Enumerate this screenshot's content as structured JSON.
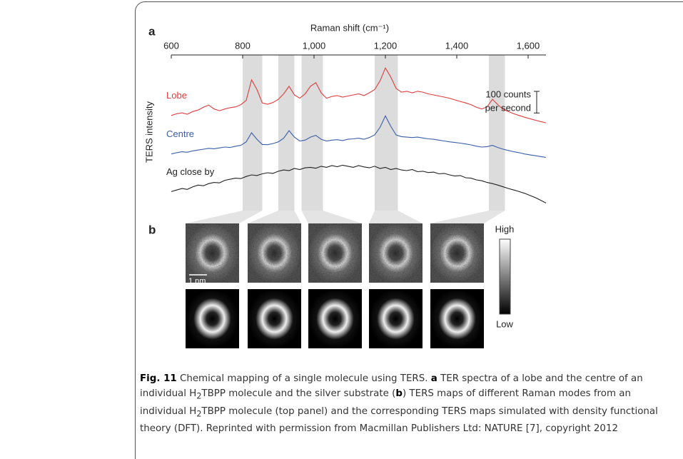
{
  "chart_data": {
    "type": "line",
    "panel_a": "a",
    "panel_b": "b",
    "xlabel": "Raman shift (cm⁻¹)",
    "ylabel": "TERS intensity",
    "xlim": [
      600,
      1650
    ],
    "ylim": [
      0,
      720
    ],
    "xticks": [
      600,
      800,
      {
        "value": 1000,
        "label": "1,000"
      },
      {
        "value": 1200,
        "label": "1,200"
      },
      {
        "value": 1400,
        "label": "1,400"
      },
      {
        "value": 1600,
        "label": "1,600"
      }
    ],
    "x": [
      600,
      615,
      630,
      645,
      660,
      675,
      690,
      705,
      720,
      735,
      750,
      765,
      780,
      795,
      810,
      825,
      840,
      855,
      870,
      885,
      900,
      915,
      930,
      945,
      960,
      975,
      990,
      1005,
      1020,
      1035,
      1050,
      1065,
      1080,
      1095,
      1110,
      1125,
      1140,
      1155,
      1170,
      1185,
      1200,
      1215,
      1230,
      1245,
      1260,
      1275,
      1290,
      1305,
      1320,
      1335,
      1350,
      1365,
      1380,
      1395,
      1410,
      1425,
      1440,
      1455,
      1470,
      1485,
      1500,
      1515,
      1530,
      1545,
      1560,
      1575,
      1590,
      1605,
      1620,
      1635,
      1650
    ],
    "series": [
      {
        "name": "Lobe",
        "color": "#e03c3c",
        "values": [
          440,
          448,
          452,
          446,
          458,
          465,
          478,
          488,
          470,
          462,
          470,
          476,
          480,
          490,
          510,
          605,
          560,
          498,
          492,
          500,
          515,
          540,
          575,
          535,
          520,
          540,
          575,
          592,
          545,
          520,
          528,
          532,
          525,
          530,
          535,
          540,
          532,
          545,
          560,
          600,
          660,
          618,
          565,
          548,
          552,
          545,
          552,
          548,
          540,
          535,
          530,
          525,
          520,
          512,
          505,
          498,
          490,
          478,
          470,
          480,
          515,
          490,
          468,
          458,
          448,
          440,
          432,
          425,
          418,
          412,
          406
        ]
      },
      {
        "name": "Centre",
        "color": "#3a5ea8",
        "values": [
          262,
          268,
          272,
          270,
          276,
          280,
          284,
          288,
          286,
          290,
          294,
          292,
          298,
          302,
          318,
          360,
          330,
          306,
          305,
          310,
          318,
          335,
          370,
          340,
          322,
          326,
          340,
          348,
          330,
          322,
          326,
          328,
          324,
          330,
          332,
          335,
          330,
          338,
          350,
          385,
          438,
          390,
          350,
          342,
          340,
          338,
          340,
          336,
          332,
          330,
          326,
          322,
          318,
          315,
          312,
          308,
          304,
          298,
          294,
          296,
          302,
          292,
          284,
          278,
          272,
          268,
          262,
          258,
          254,
          250,
          246
        ]
      },
      {
        "name": "Ag close by",
        "color": "#222222",
        "values": [
          88,
          95,
          102,
          98,
          110,
          118,
          115,
          125,
          130,
          128,
          140,
          145,
          150,
          148,
          158,
          165,
          162,
          170,
          175,
          172,
          182,
          188,
          185,
          195,
          190,
          198,
          200,
          196,
          205,
          200,
          208,
          203,
          210,
          205,
          200,
          208,
          202,
          198,
          205,
          195,
          200,
          190,
          195,
          188,
          185,
          190,
          180,
          182,
          176,
          178,
          170,
          172,
          165,
          160,
          162,
          152,
          150,
          142,
          138,
          130,
          125,
          118,
          110,
          102,
          95,
          88,
          80,
          70,
          60,
          48,
          35
        ]
      }
    ],
    "highlight_bands": [
      [
        800,
        855
      ],
      [
        900,
        945
      ],
      [
        965,
        1025
      ],
      [
        1170,
        1235
      ],
      [
        1490,
        1535
      ]
    ],
    "scale_bar": {
      "value": 100,
      "label": [
        "100 counts",
        "per second"
      ]
    },
    "map_scale": "1 nm",
    "colorbar": {
      "high": "High",
      "low": "Low"
    }
  },
  "caption": {
    "label": "Fig. 11",
    "segments": [
      "Chemical mapping of a single molecule using TERS. ",
      "a",
      " TER spectra of a lobe and the centre of an individual H",
      "2",
      "TBPP molecule and the silver substrate (",
      "b",
      ") TERS maps of different Raman modes from an individual H",
      "2",
      "TBPP molecule (top panel) and the corresponding TERS maps simulated with density functional theory (DFT). Reprinted with permission from Macmillan Publishers Ltd: NATURE [7], copyright 2012"
    ]
  }
}
